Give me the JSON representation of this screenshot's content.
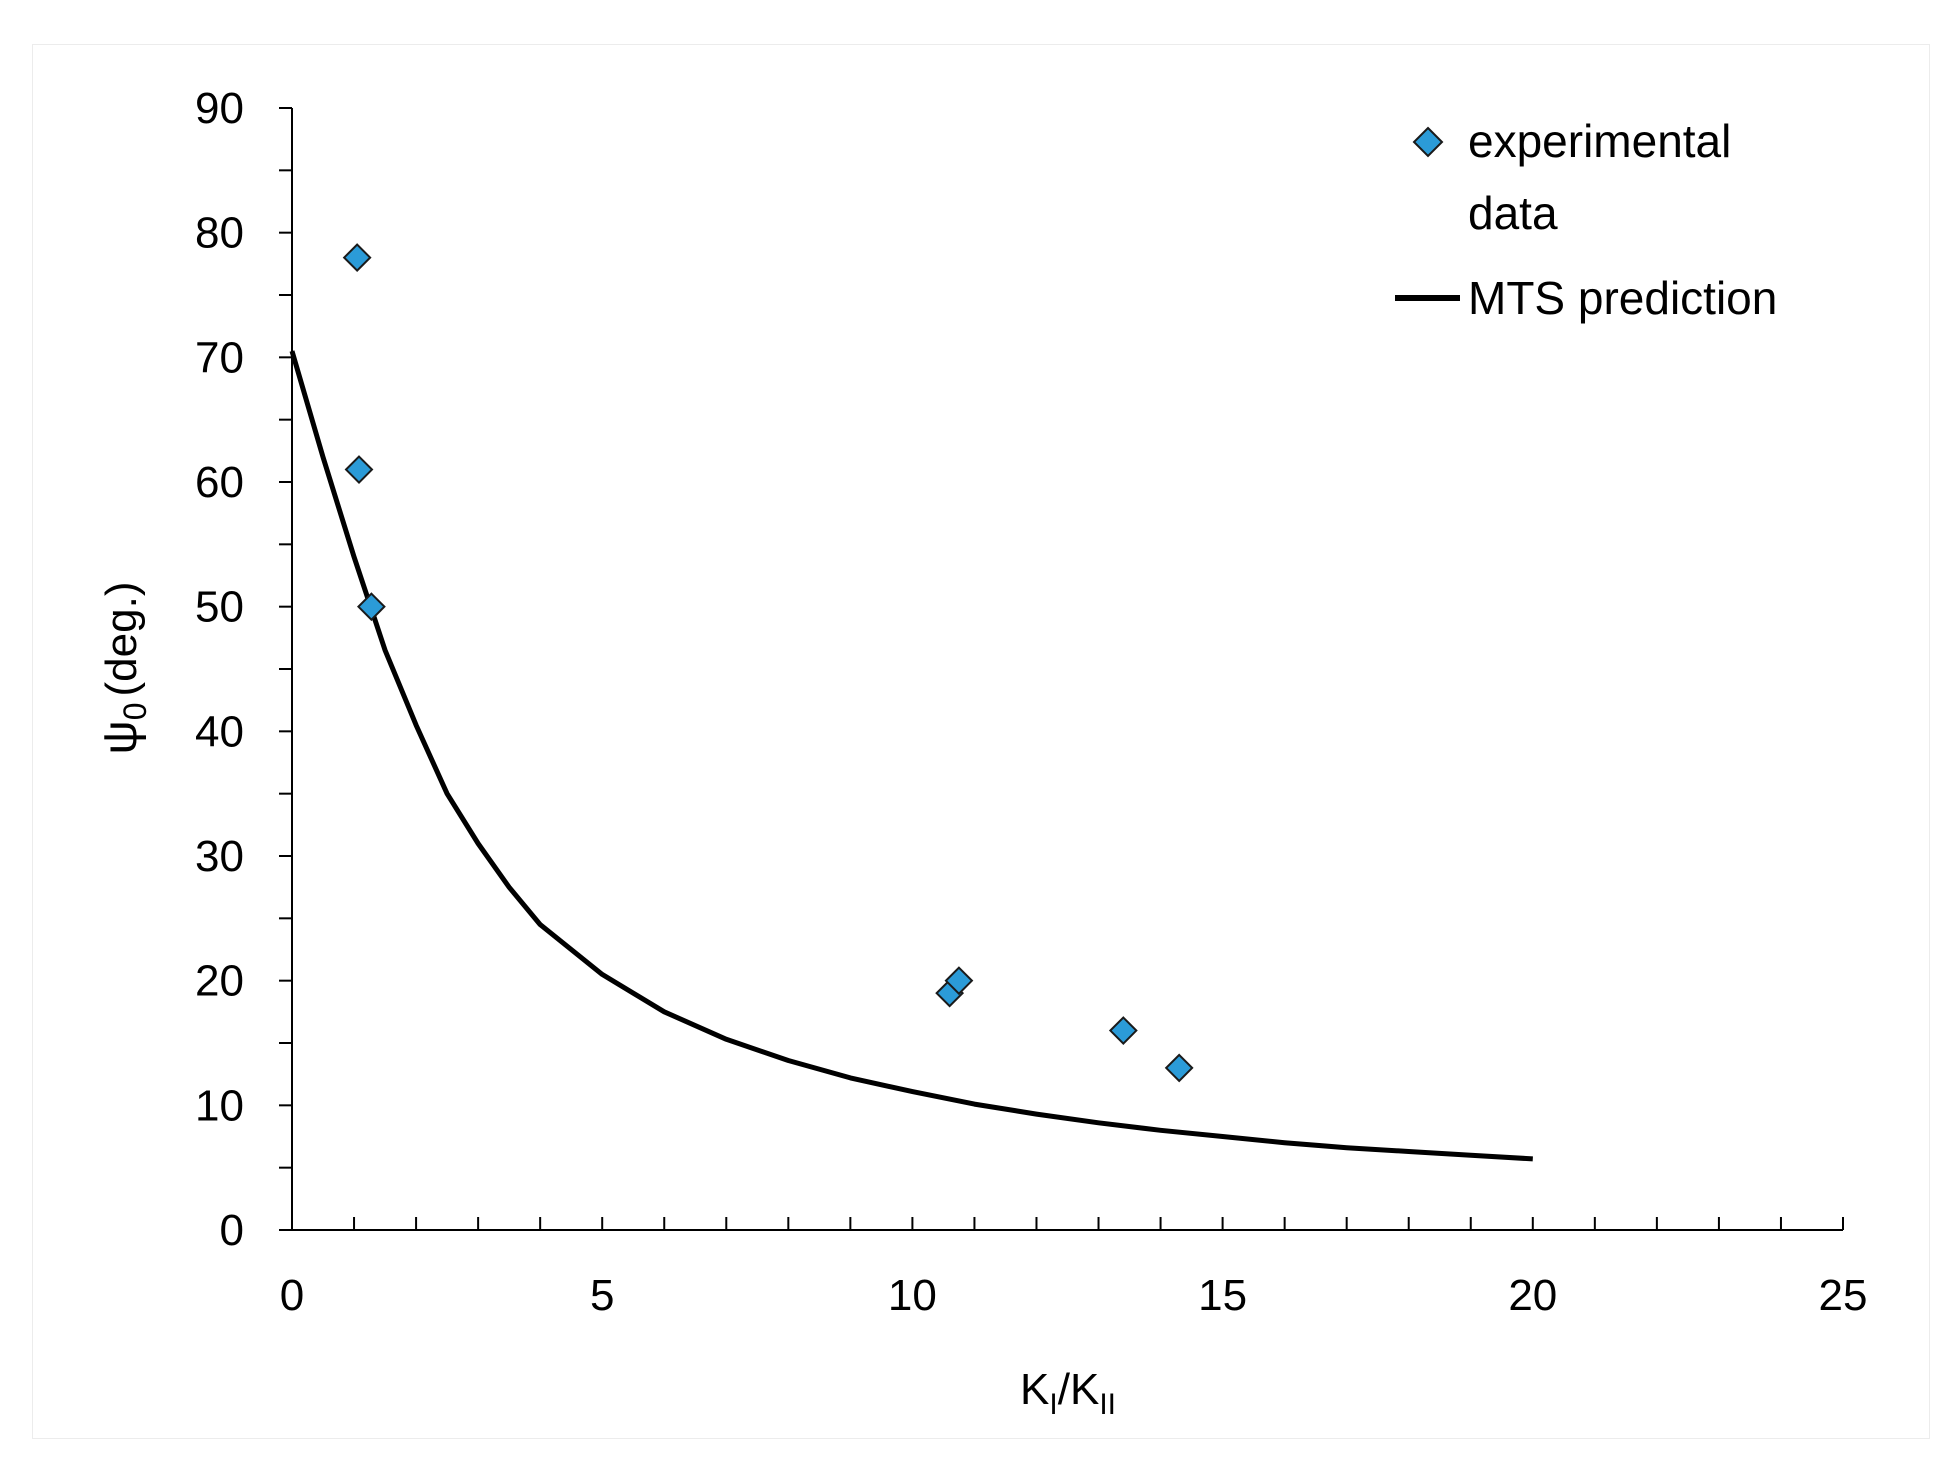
{
  "chart_data": {
    "type": "scatter",
    "title": "",
    "xlabel": {
      "main": "K",
      "sub1": "I",
      "slash": "/",
      "main2": "K",
      "sub2": "II"
    },
    "ylabel": {
      "symbol": "ψ",
      "sub": "0",
      "unit": "(deg.)"
    },
    "xlim": [
      0,
      25
    ],
    "ylim": [
      0,
      90
    ],
    "x_ticks": [
      "0",
      "5",
      "10",
      "15",
      "20",
      "25"
    ],
    "x_tick_values": [
      0,
      5,
      10,
      15,
      20,
      25
    ],
    "y_ticks": [
      "0",
      "10",
      "20",
      "30",
      "40",
      "50",
      "60",
      "70",
      "80",
      "90"
    ],
    "y_tick_values": [
      0,
      10,
      20,
      30,
      40,
      50,
      60,
      70,
      80,
      90
    ],
    "x_minor_step": 1,
    "y_minor_step": 5,
    "grid": false,
    "legend_position": "top-right",
    "series": [
      {
        "name": "experimental data",
        "legend_line1": "experimental",
        "legend_line2": "data",
        "kind": "scatter",
        "marker": "diamond",
        "color": "#2b9bd8",
        "x": [
          1.05,
          1.08,
          1.28,
          10.6,
          10.75,
          13.4,
          14.3
        ],
        "y": [
          78,
          61,
          50,
          19,
          20,
          16,
          13
        ]
      },
      {
        "name": "MTS prediction",
        "legend_label": "MTS prediction",
        "kind": "line",
        "color": "#000000",
        "x": [
          0,
          0.5,
          1,
          1.5,
          2,
          2.5,
          3,
          3.5,
          4,
          5,
          6,
          7,
          8,
          9,
          10,
          11,
          12,
          13,
          14,
          15,
          16,
          17,
          18,
          19,
          20
        ],
        "y": [
          70.5,
          62,
          54,
          46.5,
          40.5,
          35,
          31,
          27.5,
          24.5,
          20.5,
          17.5,
          15.3,
          13.6,
          12.2,
          11.1,
          10.1,
          9.3,
          8.6,
          8.0,
          7.5,
          7.0,
          6.6,
          6.3,
          6.0,
          5.7
        ]
      }
    ]
  }
}
